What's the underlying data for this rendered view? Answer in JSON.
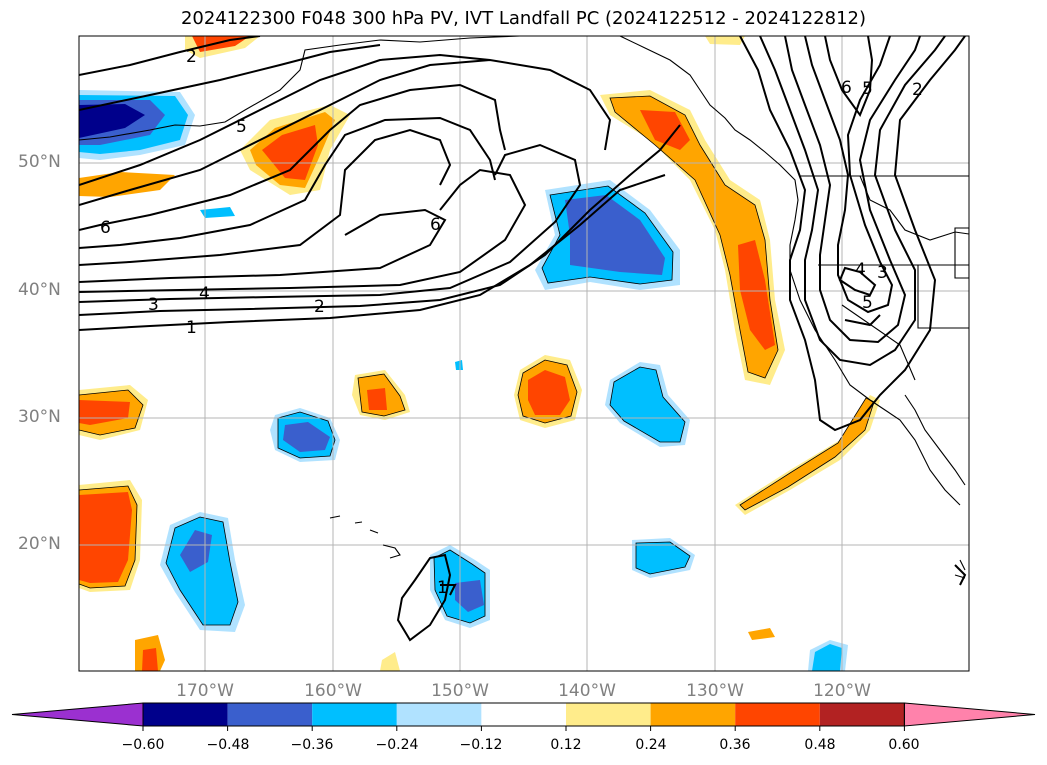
{
  "title": "2024122300 F048 300 hPa PV, IVT Landfall PC (2024122512 - 2024122812)",
  "map": {
    "lat_labels": [
      "50°N",
      "40°N",
      "30°N",
      "20°N"
    ],
    "lon_labels": [
      "170°W",
      "160°W",
      "150°W",
      "140°W",
      "130°W",
      "120°W"
    ],
    "contour_labels": [
      "2",
      "5",
      "6",
      "6",
      "3",
      "4",
      "2",
      "1",
      "6",
      "5",
      "2",
      "4",
      "3",
      "5",
      "1"
    ]
  },
  "colorbar": {
    "ticks": [
      "−0.60",
      "−0.48",
      "−0.36",
      "−0.24",
      "−0.12",
      "0.12",
      "0.24",
      "0.36",
      "0.48",
      "0.60"
    ],
    "colors": [
      "#9b30d0",
      "#00008b",
      "#3a5fcd",
      "#00bfff",
      "#b0e2ff",
      "#ffffff",
      "#ffec8b",
      "#ffa500",
      "#ff4500",
      "#b22222",
      "#ff82ab"
    ]
  }
}
